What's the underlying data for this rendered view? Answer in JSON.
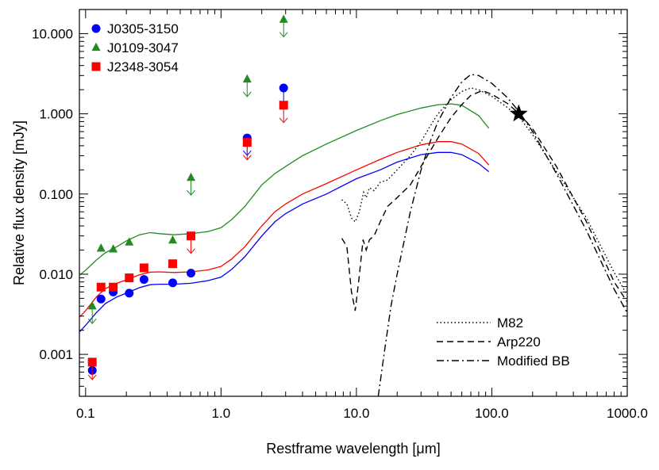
{
  "chart_data": {
    "type": "scatter",
    "xlabel": "Restframe wavelength [μm]",
    "ylabel": "Relative flux density [mJy]",
    "x_scale": "log",
    "y_scale": "log",
    "xlim": [
      0.09,
      1000
    ],
    "ylim": [
      0.0003,
      20
    ],
    "x_ticks": [
      {
        "value": 0.1,
        "label": "0.1"
      },
      {
        "value": 1,
        "label": "1.0"
      },
      {
        "value": 10,
        "label": "10.0"
      },
      {
        "value": 100,
        "label": "100.0"
      },
      {
        "value": 1000,
        "label": "1000.0"
      }
    ],
    "y_ticks": [
      {
        "value": 0.001,
        "label": "0.001"
      },
      {
        "value": 0.01,
        "label": "0.010"
      },
      {
        "value": 0.1,
        "label": "0.100"
      },
      {
        "value": 1,
        "label": "1.000"
      },
      {
        "value": 10,
        "label": "10.000"
      }
    ],
    "grid": false,
    "legend_placement": "top-left",
    "series": [
      {
        "name": "J0305-3150",
        "marker": "circle",
        "color": "#0000ff",
        "points": [
          {
            "x": 0.112,
            "y": 0.00063,
            "limit": false
          },
          {
            "x": 0.13,
            "y": 0.0049,
            "limit": false
          },
          {
            "x": 0.16,
            "y": 0.006,
            "limit": false
          },
          {
            "x": 0.21,
            "y": 0.0058,
            "limit": false
          },
          {
            "x": 0.27,
            "y": 0.0086,
            "limit": false
          },
          {
            "x": 0.44,
            "y": 0.0078,
            "limit": false
          },
          {
            "x": 0.6,
            "y": 0.0103,
            "limit": false
          },
          {
            "x": 1.56,
            "y": 0.5,
            "limit": true
          },
          {
            "x": 2.9,
            "y": 2.1,
            "limit": true
          }
        ],
        "model_curve": [
          [
            0.09,
            0.0019
          ],
          [
            0.1,
            0.0023
          ],
          [
            0.12,
            0.0033
          ],
          [
            0.14,
            0.0043
          ],
          [
            0.17,
            0.0052
          ],
          [
            0.2,
            0.0058
          ],
          [
            0.25,
            0.0068
          ],
          [
            0.3,
            0.0074
          ],
          [
            0.35,
            0.0075
          ],
          [
            0.45,
            0.0075
          ],
          [
            0.6,
            0.0077
          ],
          [
            0.8,
            0.0083
          ],
          [
            1.0,
            0.0092
          ],
          [
            1.2,
            0.0115
          ],
          [
            1.5,
            0.0165
          ],
          [
            2.0,
            0.03
          ],
          [
            2.5,
            0.045
          ],
          [
            3.0,
            0.057
          ],
          [
            4.0,
            0.075
          ],
          [
            6.0,
            0.1
          ],
          [
            10,
            0.155
          ],
          [
            15,
            0.2
          ],
          [
            20,
            0.25
          ],
          [
            30,
            0.31
          ],
          [
            40,
            0.33
          ],
          [
            50,
            0.33
          ],
          [
            60,
            0.31
          ],
          [
            80,
            0.24
          ],
          [
            95,
            0.19
          ]
        ]
      },
      {
        "name": "J0109-3047",
        "marker": "triangle",
        "color": "#228b22",
        "points": [
          {
            "x": 0.112,
            "y": 0.004,
            "limit": true
          },
          {
            "x": 0.13,
            "y": 0.021,
            "limit": false
          },
          {
            "x": 0.16,
            "y": 0.0205,
            "limit": false
          },
          {
            "x": 0.21,
            "y": 0.025,
            "limit": false
          },
          {
            "x": 0.44,
            "y": 0.0265,
            "limit": false
          },
          {
            "x": 0.6,
            "y": 0.16,
            "limit": true
          },
          {
            "x": 1.56,
            "y": 2.7,
            "limit": true
          },
          {
            "x": 2.9,
            "y": 15,
            "limit": true
          }
        ],
        "model_curve": [
          [
            0.09,
            0.0097
          ],
          [
            0.1,
            0.0112
          ],
          [
            0.12,
            0.015
          ],
          [
            0.14,
            0.0185
          ],
          [
            0.17,
            0.022
          ],
          [
            0.2,
            0.026
          ],
          [
            0.25,
            0.031
          ],
          [
            0.3,
            0.033
          ],
          [
            0.35,
            0.032
          ],
          [
            0.45,
            0.031
          ],
          [
            0.6,
            0.032
          ],
          [
            0.8,
            0.034
          ],
          [
            1.0,
            0.038
          ],
          [
            1.2,
            0.048
          ],
          [
            1.5,
            0.07
          ],
          [
            2.0,
            0.13
          ],
          [
            2.5,
            0.18
          ],
          [
            3.0,
            0.22
          ],
          [
            4.0,
            0.3
          ],
          [
            6.0,
            0.42
          ],
          [
            10,
            0.62
          ],
          [
            15,
            0.82
          ],
          [
            20,
            0.98
          ],
          [
            30,
            1.18
          ],
          [
            40,
            1.3
          ],
          [
            50,
            1.33
          ],
          [
            60,
            1.28
          ],
          [
            80,
            0.95
          ],
          [
            95,
            0.66
          ]
        ]
      },
      {
        "name": "J2348-3054",
        "marker": "square",
        "color": "#ff0000",
        "points": [
          {
            "x": 0.112,
            "y": 0.0008,
            "limit": true
          },
          {
            "x": 0.13,
            "y": 0.0069,
            "limit": false
          },
          {
            "x": 0.16,
            "y": 0.0069,
            "limit": false
          },
          {
            "x": 0.21,
            "y": 0.009,
            "limit": false
          },
          {
            "x": 0.27,
            "y": 0.012,
            "limit": false
          },
          {
            "x": 0.44,
            "y": 0.0135,
            "limit": false
          },
          {
            "x": 0.6,
            "y": 0.03,
            "limit": true
          },
          {
            "x": 1.56,
            "y": 0.44,
            "limit": true
          },
          {
            "x": 2.9,
            "y": 1.28,
            "limit": true
          }
        ],
        "model_curve": [
          [
            0.09,
            0.0029
          ],
          [
            0.1,
            0.0035
          ],
          [
            0.12,
            0.0052
          ],
          [
            0.14,
            0.0066
          ],
          [
            0.17,
            0.0077
          ],
          [
            0.2,
            0.0085
          ],
          [
            0.25,
            0.0098
          ],
          [
            0.3,
            0.0106
          ],
          [
            0.35,
            0.0107
          ],
          [
            0.45,
            0.0105
          ],
          [
            0.6,
            0.0107
          ],
          [
            0.8,
            0.0113
          ],
          [
            1.0,
            0.0125
          ],
          [
            1.2,
            0.0155
          ],
          [
            1.5,
            0.022
          ],
          [
            2.0,
            0.04
          ],
          [
            2.5,
            0.06
          ],
          [
            3.0,
            0.075
          ],
          [
            4.0,
            0.1
          ],
          [
            6.0,
            0.135
          ],
          [
            10,
            0.2
          ],
          [
            15,
            0.27
          ],
          [
            20,
            0.33
          ],
          [
            30,
            0.41
          ],
          [
            40,
            0.45
          ],
          [
            50,
            0.45
          ],
          [
            60,
            0.42
          ],
          [
            80,
            0.32
          ],
          [
            95,
            0.23
          ]
        ]
      }
    ],
    "templates": [
      {
        "name": "M82",
        "style": "dotted",
        "curve": [
          [
            7.8,
            0.085
          ],
          [
            8.5,
            0.075
          ],
          [
            9.2,
            0.05
          ],
          [
            9.8,
            0.045
          ],
          [
            10.5,
            0.06
          ],
          [
            11.3,
            0.105
          ],
          [
            11.8,
            0.09
          ],
          [
            12.5,
            0.12
          ],
          [
            13.5,
            0.11
          ],
          [
            15,
            0.14
          ],
          [
            17,
            0.15
          ],
          [
            20,
            0.2
          ],
          [
            25,
            0.3
          ],
          [
            30,
            0.45
          ],
          [
            35,
            0.7
          ],
          [
            40,
            1.0
          ],
          [
            50,
            1.5
          ],
          [
            60,
            1.9
          ],
          [
            70,
            2.1
          ],
          [
            80,
            2.0
          ],
          [
            100,
            1.65
          ],
          [
            130,
            1.2
          ],
          [
            160,
            0.9
          ],
          [
            200,
            0.55
          ],
          [
            300,
            0.19
          ],
          [
            500,
            0.05
          ],
          [
            800,
            0.0105
          ],
          [
            1000,
            0.0055
          ]
        ]
      },
      {
        "name": "Arp220",
        "style": "dashed",
        "curve": [
          [
            7.8,
            0.028
          ],
          [
            8.5,
            0.022
          ],
          [
            9.2,
            0.006
          ],
          [
            9.8,
            0.0035
          ],
          [
            10.5,
            0.0095
          ],
          [
            11.2,
            0.027
          ],
          [
            11.8,
            0.02
          ],
          [
            12.5,
            0.027
          ],
          [
            13.5,
            0.03
          ],
          [
            15,
            0.045
          ],
          [
            17,
            0.07
          ],
          [
            20,
            0.09
          ],
          [
            25,
            0.13
          ],
          [
            30,
            0.22
          ],
          [
            40,
            0.5
          ],
          [
            50,
            0.9
          ],
          [
            60,
            1.3
          ],
          [
            70,
            1.7
          ],
          [
            85,
            1.95
          ],
          [
            100,
            1.75
          ],
          [
            130,
            1.35
          ],
          [
            160,
            1.0
          ],
          [
            200,
            0.65
          ],
          [
            300,
            0.22
          ],
          [
            500,
            0.045
          ],
          [
            800,
            0.008
          ],
          [
            1000,
            0.0045
          ]
        ]
      },
      {
        "name": "Modified BB",
        "style": "dashdot",
        "curve": [
          [
            14.5,
            0.0003
          ],
          [
            16,
            0.001
          ],
          [
            18,
            0.004
          ],
          [
            20,
            0.01
          ],
          [
            25,
            0.06
          ],
          [
            30,
            0.2
          ],
          [
            35,
            0.45
          ],
          [
            40,
            0.8
          ],
          [
            50,
            1.6
          ],
          [
            60,
            2.5
          ],
          [
            70,
            3.1
          ],
          [
            80,
            3.0
          ],
          [
            100,
            2.4
          ],
          [
            130,
            1.6
          ],
          [
            160,
            1.05
          ],
          [
            200,
            0.6
          ],
          [
            300,
            0.18
          ],
          [
            500,
            0.035
          ],
          [
            800,
            0.0065
          ],
          [
            1000,
            0.0033
          ]
        ]
      }
    ],
    "annotations": [
      {
        "type": "star",
        "x": 158,
        "y": 1.0,
        "color": "#000000"
      }
    ]
  }
}
